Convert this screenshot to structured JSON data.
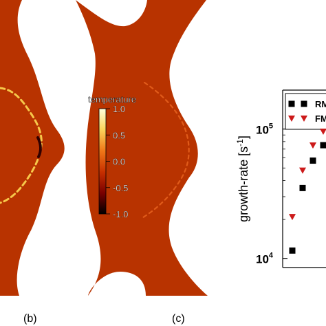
{
  "panels": [
    {
      "label": "(b)"
    },
    {
      "label": "(c)"
    }
  ],
  "colorbar": {
    "title": "temperature",
    "ticks": [
      "1.0",
      "0.5",
      "0.0",
      "-0.5",
      "-1.0"
    ],
    "colors": [
      "#000000",
      "#7a0000",
      "#c83000",
      "#f07818",
      "#fbd35a",
      "#ffffdd"
    ]
  },
  "field_color": "#b83300",
  "plot": {
    "ylabel": "growth-rate [s",
    "ylabel_sup": "-1",
    "ylabel_close": "]",
    "yticks": [
      {
        "base": "10",
        "exp": "5"
      },
      {
        "base": "10",
        "exp": "4"
      }
    ],
    "legend": [
      {
        "name": "RM",
        "marker": "square",
        "color": "#000000"
      },
      {
        "name": "FM",
        "marker": "triangle-down",
        "color": "#cc1a1a"
      }
    ]
  },
  "chart_data": {
    "type": "scatter",
    "ylabel": "growth-rate [s^-1]",
    "yscale": "log",
    "ylim": [
      8500,
      200000
    ],
    "series": [
      {
        "name": "RM",
        "marker": "square",
        "color": "#000000",
        "x": [
          1,
          2,
          3,
          4
        ],
        "y": [
          11500,
          35000,
          57000,
          75000
        ]
      },
      {
        "name": "FM",
        "marker": "triangle-down",
        "color": "#cc1a1a",
        "x": [
          1,
          2,
          3,
          4
        ],
        "y": [
          21000,
          48000,
          75000,
          96000
        ]
      }
    ]
  }
}
